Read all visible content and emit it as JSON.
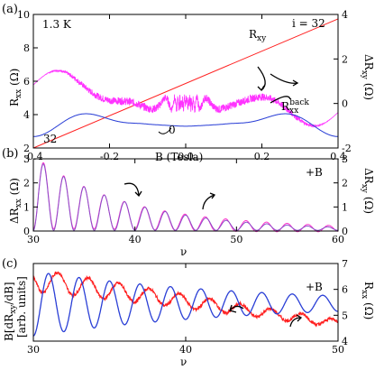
{
  "panels": [
    {
      "id": "a",
      "label": "(a)",
      "temperature": "1.3 K",
      "xlabel": "B (Tesla)",
      "ylabel_left_main": "R",
      "ylabel_left_sub": "xx",
      "ylabel_left_unit": " (Ω)",
      "ylabel_right_main": "ΔR",
      "ylabel_right_sub": "xy",
      "ylabel_right_unit": " (Ω)",
      "annotations": {
        "rxy_main": "R",
        "rxy_sub": "xy",
        "rxxback_main": "R",
        "rxxback_sub": "xx",
        "rxxback_sup": "back",
        "i32": "i = 32",
        "n32": "32",
        "zero": "0"
      }
    },
    {
      "id": "b",
      "label": "(b)",
      "field_tag": "+B",
      "xlabel": "ν",
      "ylabel_left_main": "ΔR",
      "ylabel_left_sub": "xx",
      "ylabel_left_unit": " (Ω)",
      "ylabel_right_main": "ΔR",
      "ylabel_right_sub": "xy",
      "ylabel_right_unit": " (Ω)"
    },
    {
      "id": "c",
      "label": "(c)",
      "field_tag": "+B",
      "xlabel": "ν",
      "ylabel_left_line1": "B[dR",
      "ylabel_left_line1_sub": "xy",
      "ylabel_left_line1_end": "/dB]",
      "ylabel_left_line2": "[arb. units]",
      "ylabel_right_main": "R",
      "ylabel_right_sub": "xx",
      "ylabel_right_unit": " (Ω)"
    }
  ],
  "colors": {
    "red": "#ff2020",
    "blue": "#2a3fd6",
    "magenta": "#ff33ff",
    "purple": "#8a4fc8",
    "pink": "#ff33cc"
  },
  "chart_data": [
    {
      "type": "line",
      "panel": "a",
      "xlim": [
        -0.4,
        0.4
      ],
      "ylim_left": [
        2,
        10
      ],
      "ylim_right": [
        -2,
        4
      ],
      "xticks": [
        -0.4,
        -0.2,
        0.0,
        0.2,
        0.4
      ],
      "xtick_labels": [
        "-0.4",
        "-0.2",
        "0.0",
        "0.2",
        "0.4"
      ],
      "yticks_left": [
        2,
        4,
        6,
        8,
        10
      ],
      "ytick_labels_left": [
        "2",
        "4",
        "6",
        "8",
        "10"
      ],
      "yticks_right": [
        -2,
        0,
        2,
        4
      ],
      "ytick_labels_right": [
        "-2",
        "0",
        "2",
        "4"
      ],
      "series": [
        {
          "name": "R_xy",
          "axis": "right",
          "color": "#ff2020",
          "x": [
            -0.4,
            0.4
          ],
          "y": [
            -2.0,
            3.8
          ]
        },
        {
          "name": "R_xx^back",
          "axis": "left",
          "color": "#2a3fd6",
          "shape": "oscillating magnetoresistance, symmetric, minimum near B=0 (~3.3 Ω), envelope rising to ~7 Ω at |B|=0.4 T"
        },
        {
          "name": "ΔR_xy",
          "axis": "right",
          "color": "#ff33ff",
          "shape": "oscillating Hall deviation around ~0 Ω, amplitude growing to ~±2 Ω at |B|=0.4 T"
        }
      ]
    },
    {
      "type": "line",
      "panel": "b",
      "xlim": [
        30,
        60
      ],
      "ylim_left": [
        0,
        3
      ],
      "xticks": [
        30,
        40,
        50,
        60
      ],
      "xtick_labels": [
        "30",
        "40",
        "50",
        "60"
      ],
      "yticks_left": [
        0,
        1,
        2,
        3
      ],
      "ytick_labels_left": [
        "0",
        "1",
        "2",
        "3"
      ],
      "yticks_right": [
        0,
        1,
        2,
        3
      ],
      "ytick_labels_right": [
        "0",
        "1",
        "2",
        "3"
      ],
      "series": [
        {
          "name": "ΔR_xx",
          "axis": "left",
          "color": "#8a4fc8",
          "shape": "oscillations vs filling factor, period 2 in ν, peak amplitude decaying from ~2.9 Ω at ν=31 to ~0.2 Ω at ν=59"
        },
        {
          "name": "ΔR_xy",
          "axis": "right",
          "color": "#ff33cc",
          "shape": "nearly coincident with ΔR_xx"
        }
      ]
    },
    {
      "type": "line",
      "panel": "c",
      "xlim": [
        30,
        50
      ],
      "ylim_right": [
        4,
        7
      ],
      "xticks": [
        30,
        40,
        50
      ],
      "xtick_labels": [
        "30",
        "40",
        "50"
      ],
      "yticks_right": [
        4,
        5,
        6,
        7
      ],
      "ytick_labels_right": [
        "4",
        "5",
        "6",
        "7"
      ],
      "series": [
        {
          "name": "B[dR_xy/dB]",
          "axis": "left",
          "color": "#2a3fd6",
          "shape": "derivative oscillations, period 2 in ν, decaying amplitude"
        },
        {
          "name": "R_xx",
          "axis": "right",
          "color": "#ff2020",
          "shape": "oscillations near ~6.3 Ω at ν=31 decreasing toward ~4.7 Ω at ν=49, with fine noise"
        }
      ]
    }
  ]
}
